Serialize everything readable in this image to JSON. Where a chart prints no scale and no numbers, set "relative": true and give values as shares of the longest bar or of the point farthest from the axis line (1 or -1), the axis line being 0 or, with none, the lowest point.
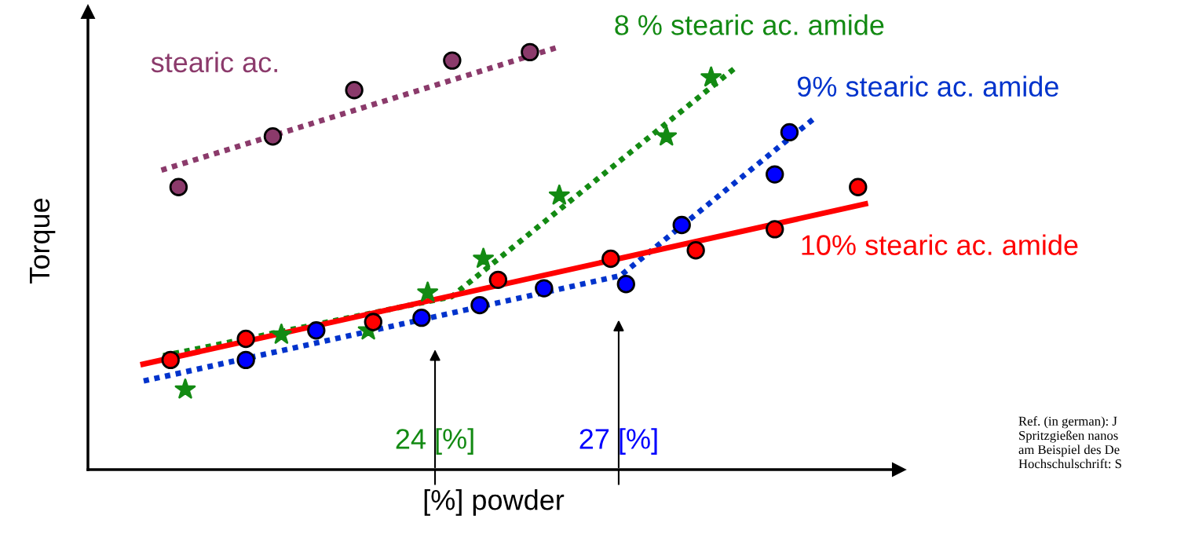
{
  "chart_data": {
    "type": "scatter",
    "relative": true,
    "xlabel": "[%] powder",
    "ylabel": "Torque",
    "xlim": [
      18.33,
      31.58
    ],
    "xticks": [
      {
        "value": 24,
        "label": "24 [%]"
      },
      {
        "value": 27,
        "label": "27 [%]"
      }
    ],
    "tick_labels": "x",
    "grid": false,
    "legend": false,
    "series": [
      {
        "marker": "circle",
        "color": "#8b3a6b",
        "x": [
          19.81,
          21.35,
          22.68,
          24.28,
          25.55
        ],
        "values": [
          0.67,
          0.79,
          0.9,
          0.97,
          0.99
        ]
      },
      {
        "type": "line",
        "name": "stearic ac.",
        "line_style": "dotted",
        "color": "#8b3a6b",
        "x": [
          19.53,
          25.97
        ],
        "values": [
          0.71,
          1.0
        ]
      },
      {
        "marker": "star",
        "color": "#138a13",
        "x": [
          19.92,
          21.49,
          22.91,
          23.88,
          24.79,
          26.03,
          27.78,
          28.51
        ],
        "values": [
          0.19,
          0.32,
          0.33,
          0.42,
          0.5,
          0.65,
          0.79,
          0.93
        ]
      },
      {
        "type": "line",
        "name": "8 % stearic ac. amide",
        "line_style": "dotted",
        "color": "#138a13",
        "x": [
          19.56,
          24.27,
          28.88
        ],
        "values": [
          0.27,
          0.41,
          0.95
        ]
      },
      {
        "marker": "circle",
        "color": "#0000ff",
        "x": [
          20.91,
          22.06,
          23.78,
          24.73,
          25.78,
          27.12,
          28.03,
          29.55,
          29.79
        ],
        "values": [
          0.26,
          0.33,
          0.36,
          0.39,
          0.43,
          0.44,
          0.58,
          0.7,
          0.8
        ]
      },
      {
        "type": "line",
        "name": "9% stearic ac. amide",
        "line_style": "dotted",
        "color": "#0033cc",
        "x": [
          19.24,
          27.03,
          30.17
        ],
        "values": [
          0.21,
          0.46,
          0.83
        ]
      },
      {
        "marker": "circle",
        "color": "#ff0000",
        "x": [
          19.68,
          20.91,
          22.99,
          25.03,
          26.87,
          28.26,
          29.55,
          30.91
        ],
        "values": [
          0.26,
          0.31,
          0.35,
          0.45,
          0.5,
          0.52,
          0.57,
          0.67
        ]
      },
      {
        "type": "line",
        "name": "10% stearic ac. amide",
        "line_style": "solid",
        "color": "#ff0000",
        "x": [
          19.23,
          31.03
        ],
        "values": [
          0.25,
          0.63
        ]
      }
    ],
    "annotations": [
      "Ref. (in german): J\nSpritzgießen nanos\nam Beispiel des De\nHochschulschrift: S"
    ]
  }
}
